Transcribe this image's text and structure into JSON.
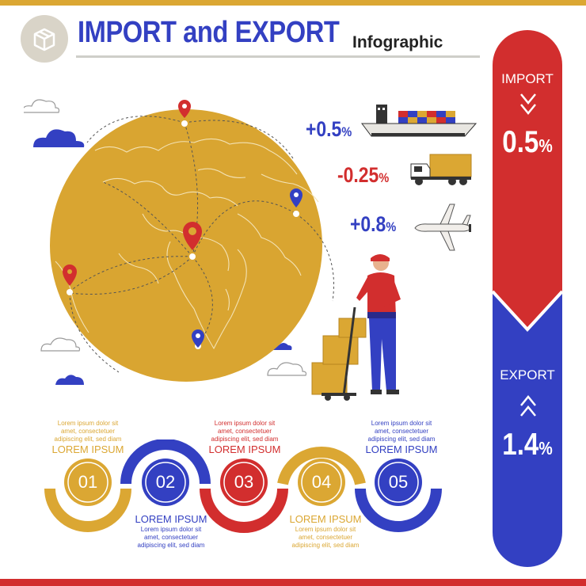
{
  "header": {
    "title": "IMPORT and EXPORT",
    "subtitle": "Infographic",
    "badge_icon": "package-box-icon"
  },
  "transport_stats": [
    {
      "value": "+0.5",
      "unit": "%",
      "icon": "cargo-ship-icon",
      "color": "#3340c2"
    },
    {
      "value": "-0.25",
      "unit": "%",
      "icon": "truck-icon",
      "color": "#d22e2e"
    },
    {
      "value": "+0.8",
      "unit": "%",
      "icon": "airplane-icon",
      "color": "#3340c2"
    }
  ],
  "import_panel": {
    "label": "IMPORT",
    "value": "0.5",
    "unit": "%",
    "arrow_icon": "chevron-down-double-icon",
    "color": "#d22e2e"
  },
  "export_panel": {
    "label": "EXPORT",
    "value": "1.4",
    "unit": "%",
    "arrow_icon": "chevron-up-double-icon",
    "color": "#3340c2"
  },
  "steps": [
    {
      "number": "01",
      "title": "LOREM IPSUM",
      "desc_lines": [
        "Lorem ipsum dolor sit",
        "amet, consectetuer",
        "adipiscing elit, sed diam"
      ],
      "color": "#dba733"
    },
    {
      "number": "02",
      "title": "LOREM IPSUM",
      "desc_lines": [
        "Lorem ipsum dolor sit",
        "amet, consectetuer",
        "adipiscing elit, sed diam"
      ],
      "color": "#3340c2"
    },
    {
      "number": "03",
      "title": "LOREM IPSUM",
      "desc_lines": [
        "Lorem ipsum dolor sit",
        "amet, consectetuer",
        "adipiscing elit, sed diam"
      ],
      "color": "#d22e2e"
    },
    {
      "number": "04",
      "title": "LOREM IPSUM",
      "desc_lines": [
        "Lorem ipsum dolor sit",
        "amet, consectetuer",
        "adipiscing elit, sed diam"
      ],
      "color": "#dba733"
    },
    {
      "number": "05",
      "title": "LOREM IPSUM",
      "desc_lines": [
        "Lorem ipsum dolor sit",
        "amet, consectetuer",
        "adipiscing elit, sed diam"
      ],
      "color": "#3340c2"
    }
  ],
  "colors": {
    "gold": "#dba733",
    "blue": "#3340c2",
    "red": "#d22e2e",
    "globe": "#d9a531"
  }
}
